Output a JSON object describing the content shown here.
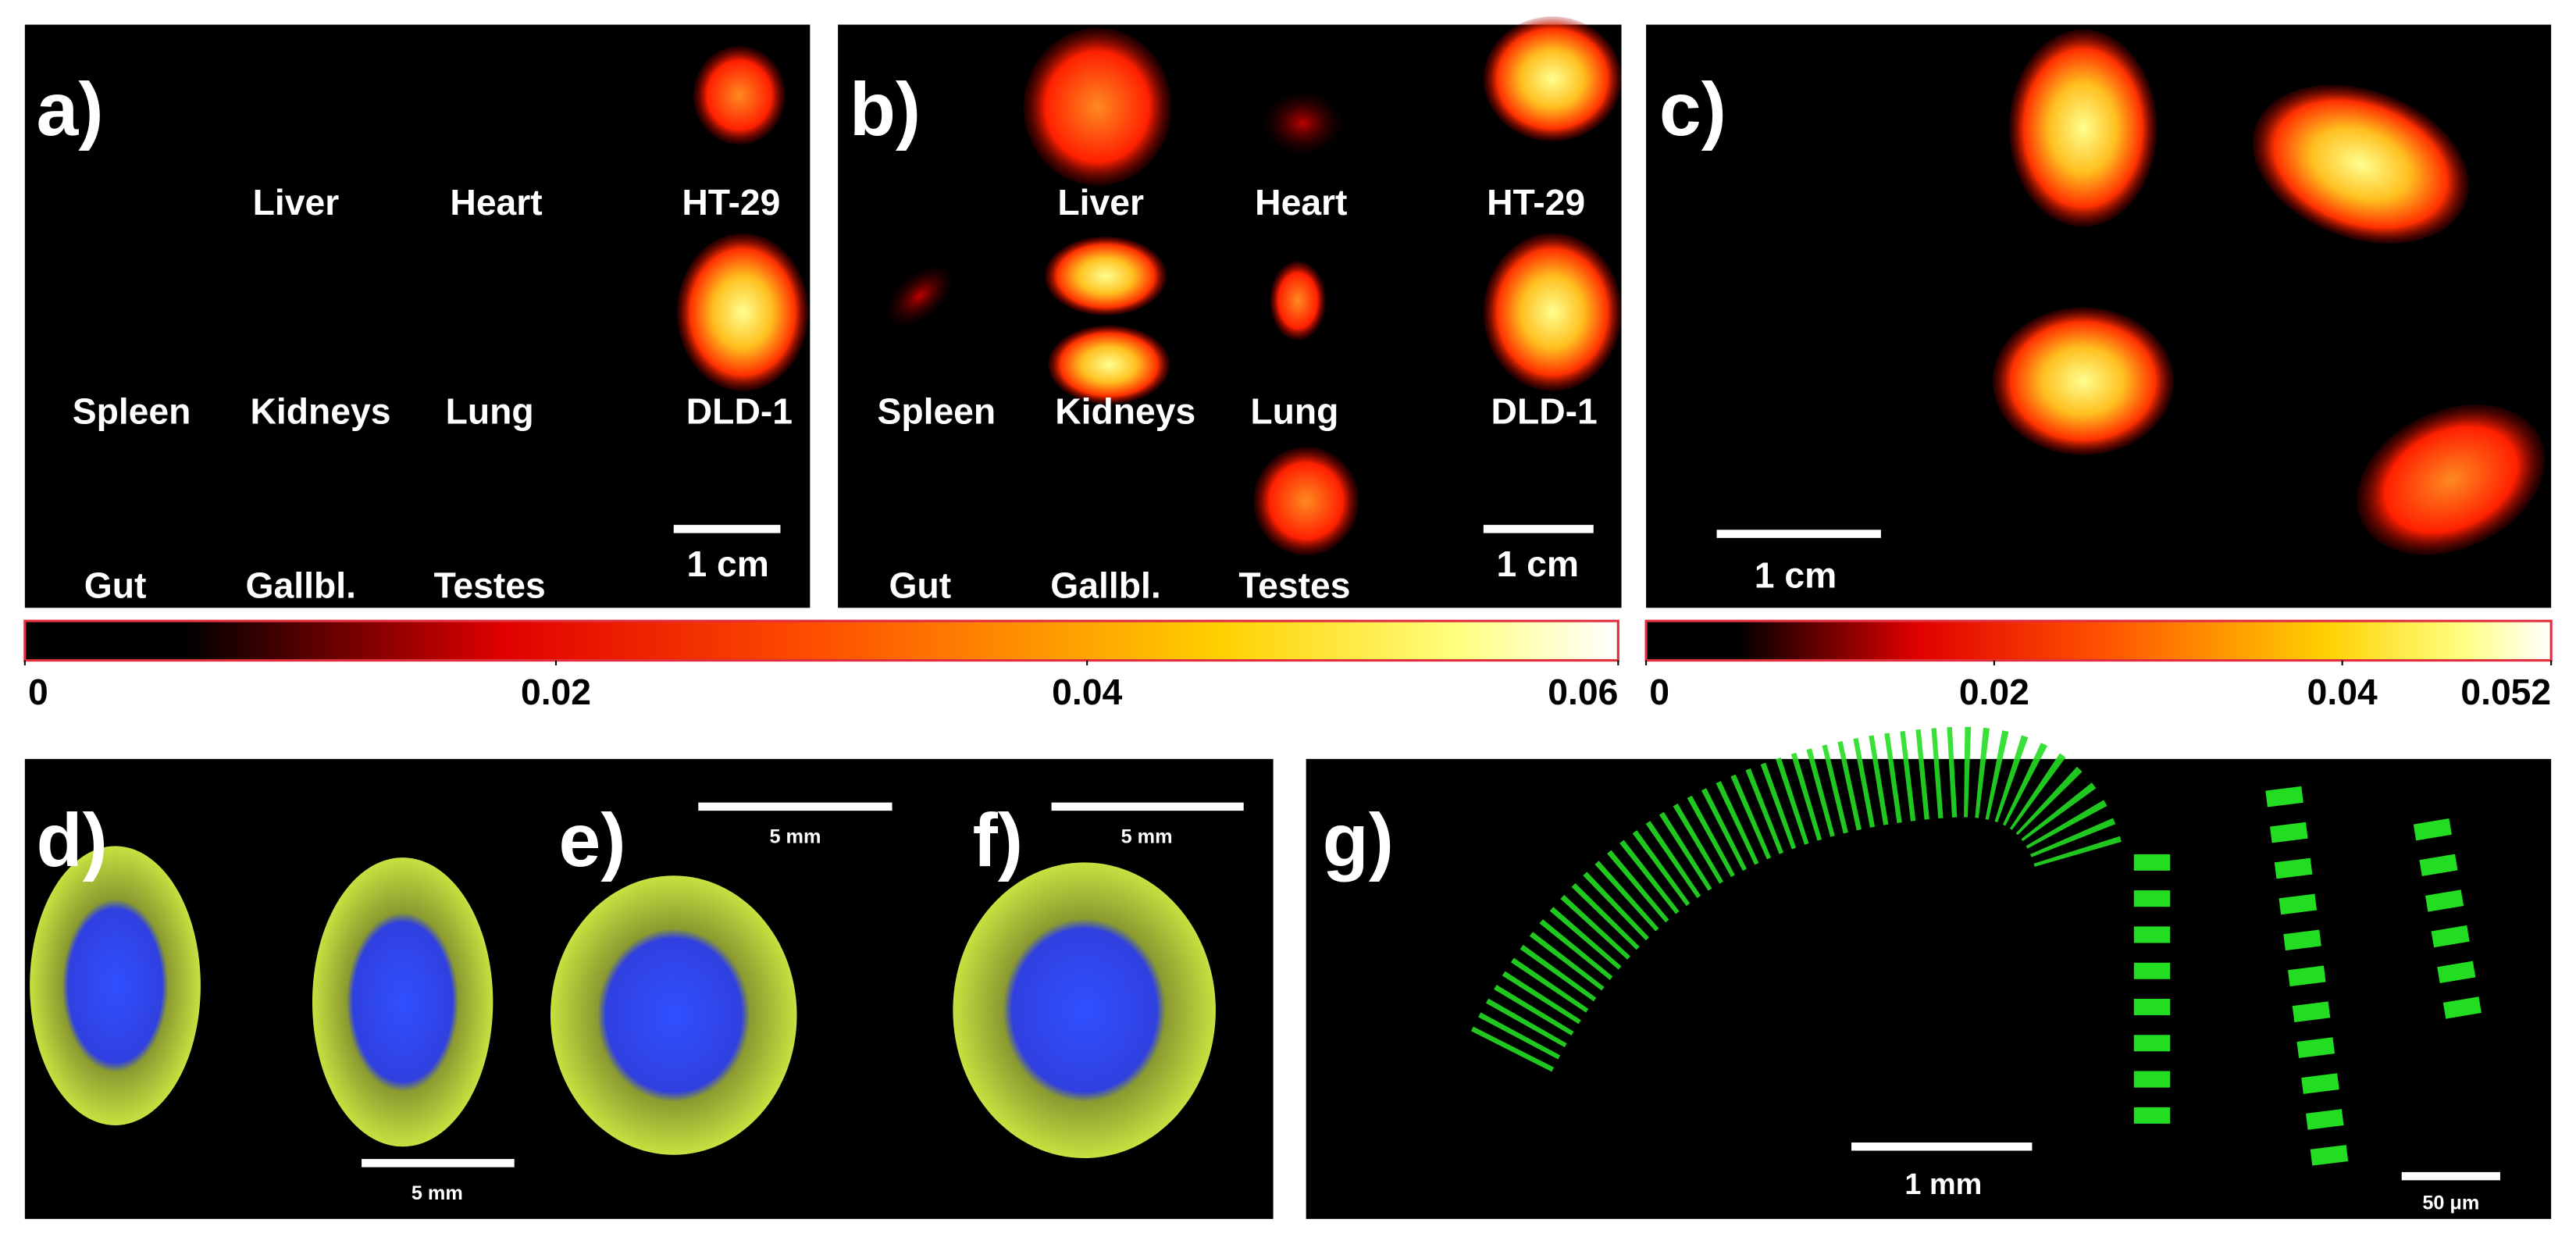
{
  "panels": [
    {
      "label": "a)",
      "organs": [
        "Liver",
        "Heart",
        "HT-29",
        "Spleen",
        "Kidneys",
        "Lung",
        "DLD-1",
        "Gut",
        "Gallbl.",
        "Testes"
      ],
      "scale_bar": "1 cm"
    },
    {
      "label": "b)",
      "organs": [
        "Liver",
        "Heart",
        "HT-29",
        "Spleen",
        "Kidneys",
        "Lung",
        "DLD-1",
        "Gut",
        "Gallbl.",
        "Testes"
      ],
      "scale_bar": "1 cm"
    },
    {
      "label": "c)",
      "scale_bar": "1 cm"
    },
    {
      "label": "d)",
      "scale_bar": "5 mm"
    },
    {
      "label": "e)",
      "scale_bar": "5 mm"
    },
    {
      "label": "f)",
      "scale_bar": "5 mm"
    },
    {
      "label": "g)",
      "scale_bars": [
        "1 mm",
        "50 μm"
      ]
    }
  ],
  "colorbars": [
    {
      "lim": [
        0,
        0.06
      ],
      "ticks": [
        0,
        0.02,
        0.04,
        0.06
      ]
    },
    {
      "lim": [
        0,
        0.052
      ],
      "ticks": [
        0,
        0.02,
        0.04,
        0.052
      ]
    }
  ]
}
